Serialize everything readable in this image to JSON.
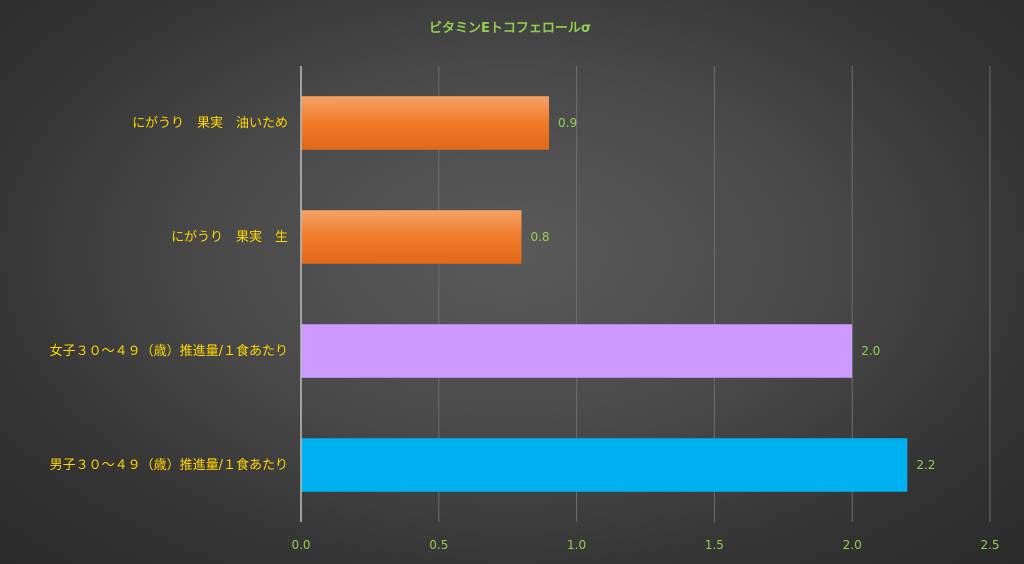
{
  "chart_data": {
    "type": "bar",
    "orientation": "horizontal",
    "title": "ビタミンEトコフェロールσ",
    "categories": [
      "にがうり　果実　油いため",
      "にがうり　果実　生",
      "女子３０～４９（歳）推進量/１食あたり",
      "男子３０～４９（歳）推進量/１食あたり"
    ],
    "values": [
      0.9,
      0.8,
      2.0,
      2.2
    ],
    "data_labels": [
      "0.9",
      "0.8",
      "2.0",
      "2.2"
    ],
    "bar_colors": [
      "#f07b28",
      "#f07b28",
      "#cc99ff",
      "#00b0f0"
    ],
    "xlim": [
      0,
      2.5
    ],
    "xticks": [
      0,
      0.5,
      1.0,
      1.5,
      2.0,
      2.5
    ],
    "xtick_labels": [
      "0.0",
      "0.5",
      "1.0",
      "1.5",
      "2.0",
      "2.5"
    ],
    "grid": true,
    "legend": "none"
  }
}
